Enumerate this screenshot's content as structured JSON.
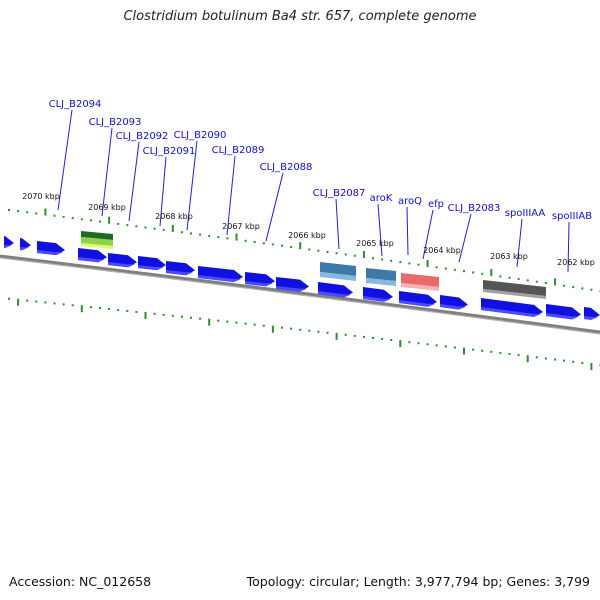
{
  "title": "Clostridium botulinum Ba4 str. 657, complete genome",
  "footer": {
    "accession": "Accession: NC_012658",
    "topology": "Topology: circular; Length: 3,977,794 bp; Genes: 3,799"
  },
  "colors": {
    "backbone": "#808080",
    "cds": "#1010e0",
    "cds_shadow": "#4a4aff",
    "tick": "#2e8b2e",
    "label": "#1010c8",
    "label_line": "#2020d0"
  },
  "tick_labels": [
    "2070 kbp",
    "2069 kbp",
    "2068 kbp",
    "2067 kbp",
    "2066 kbp",
    "2065 kbp",
    "2064 kbp",
    "2063 kbp",
    "2062 kbp"
  ],
  "gene_labels": [
    "CLJ_B2094",
    "CLJ_B2093",
    "CLJ_B2092",
    "CLJ_B2091",
    "CLJ_B2090",
    "CLJ_B2089",
    "CLJ_B2088",
    "CLJ_B2087",
    "aroK",
    "aroQ",
    "efp",
    "CLJ_B2083",
    "spoIIIAA",
    "spoIIIAB"
  ],
  "feature_colors": {
    "green": "#2a8a2a",
    "steelblue": "#4682b4",
    "salmon": "#f08080",
    "gray": "#606060"
  }
}
